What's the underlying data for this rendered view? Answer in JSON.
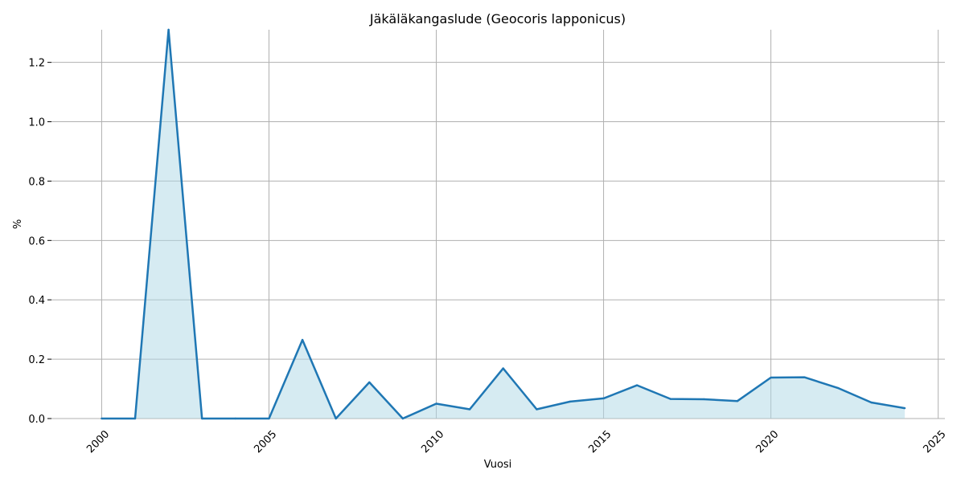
{
  "chart_data": {
    "type": "area",
    "title": "Jäkäläkangaslude (Geocoris lapponicus)",
    "xlabel": "Vuosi",
    "ylabel": "%",
    "xlim": [
      1998.5,
      2025.2
    ],
    "ylim": [
      0,
      1.31
    ],
    "grid": true,
    "x_ticks": [
      2000,
      2005,
      2010,
      2015,
      2020,
      2025
    ],
    "y_ticks": [
      0.0,
      0.2,
      0.4,
      0.6,
      0.8,
      1.0,
      1.2
    ],
    "x_tick_labels": [
      "2000",
      "2005",
      "2010",
      "2015",
      "2020",
      "2025"
    ],
    "y_tick_labels": [
      "0.0",
      "0.2",
      "0.4",
      "0.6",
      "0.8",
      "1.0",
      "1.2"
    ],
    "x": [
      2000,
      2001,
      2002,
      2003,
      2004,
      2005,
      2006,
      2007,
      2008,
      2009,
      2010,
      2011,
      2012,
      2013,
      2014,
      2015,
      2016,
      2017,
      2018,
      2019,
      2020,
      2021,
      2022,
      2023,
      2024
    ],
    "y": [
      0.0,
      0.0,
      1.31,
      0.0,
      0.0,
      0.0,
      0.265,
      0.0,
      0.122,
      0.0,
      0.05,
      0.031,
      0.169,
      0.031,
      0.057,
      0.068,
      0.112,
      0.066,
      0.065,
      0.059,
      0.138,
      0.139,
      0.103,
      0.054,
      0.035
    ],
    "colors": {
      "line": "#1f77b4",
      "fill": "#add8e6",
      "grid": "#b0b0b0"
    }
  }
}
